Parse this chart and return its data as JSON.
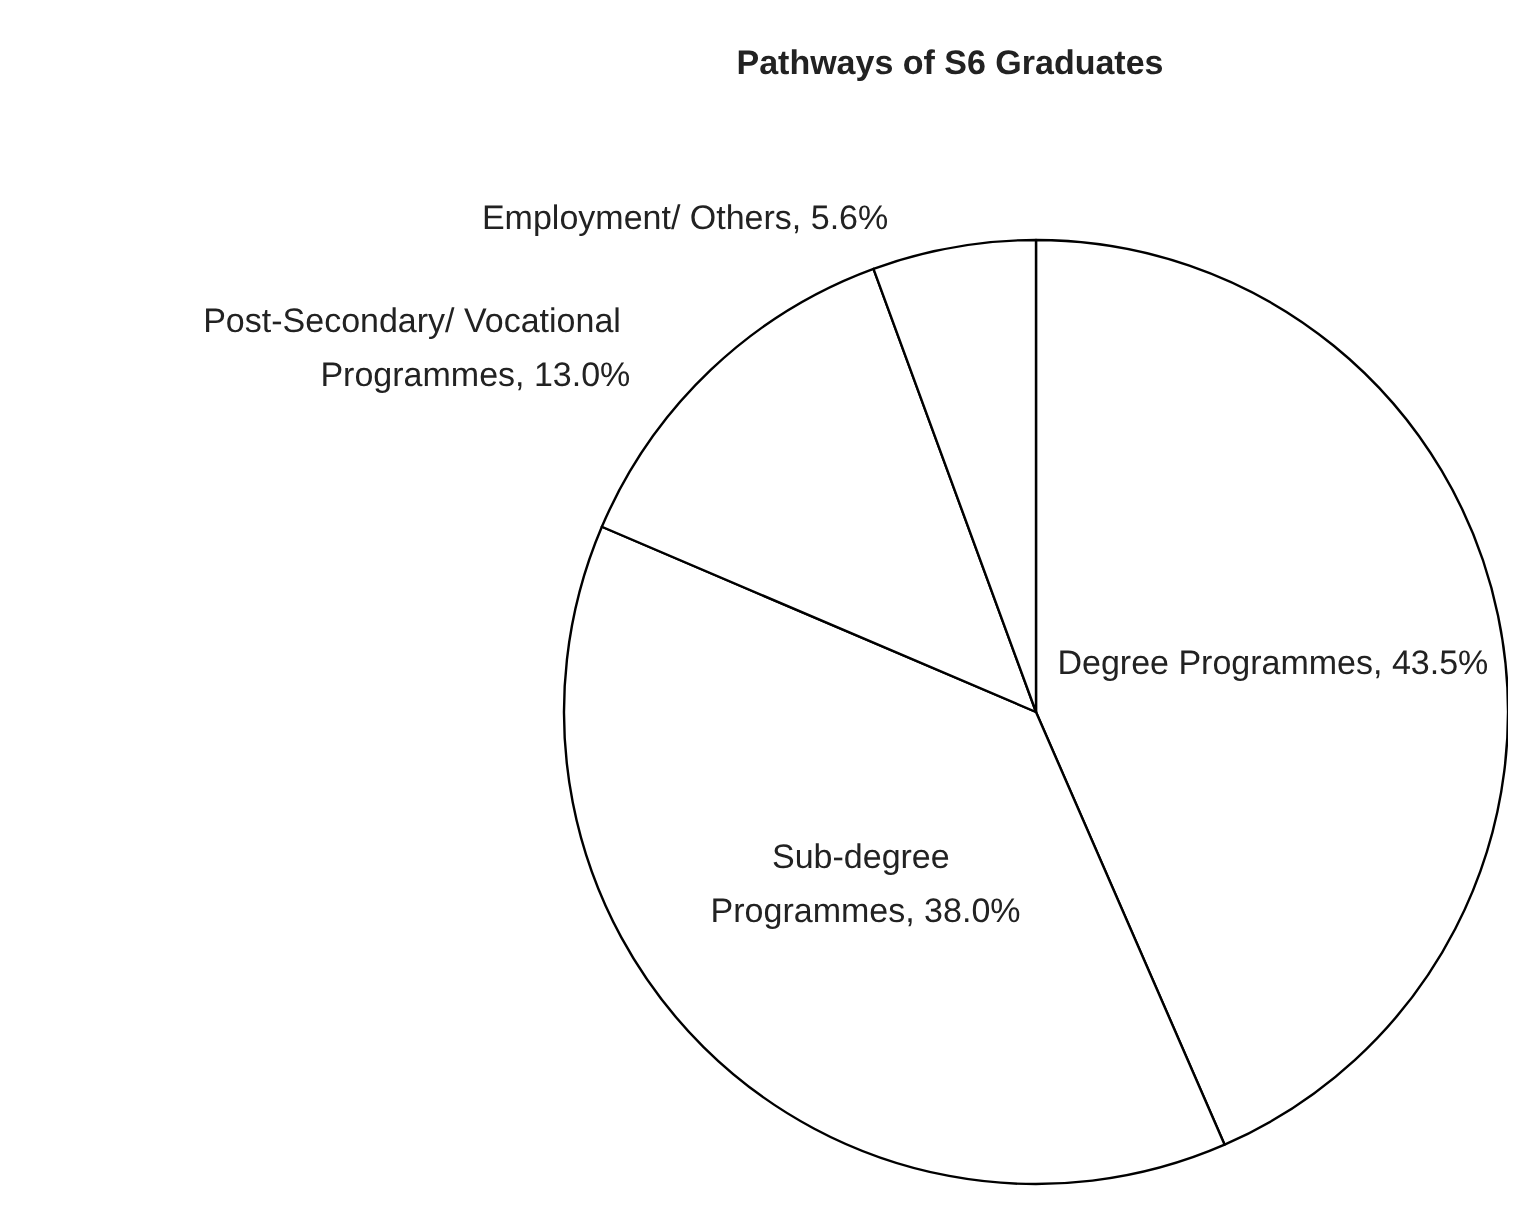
{
  "chart_data": {
    "type": "pie",
    "title": "Pathways of S6 Graduates",
    "categories": [
      "Degree Programmes",
      "Sub-degree Programmes",
      "Post-Secondary/ Vocational Programmes",
      "Employment/ Others"
    ],
    "values": [
      43.5,
      38.0,
      13.0,
      5.6
    ],
    "value_labels": [
      "43.5%",
      "38.0%",
      "13.0%",
      "5.6%"
    ],
    "colors": [
      "#ffffff",
      "#ffffff",
      "#ffffff",
      "#ffffff"
    ]
  }
}
